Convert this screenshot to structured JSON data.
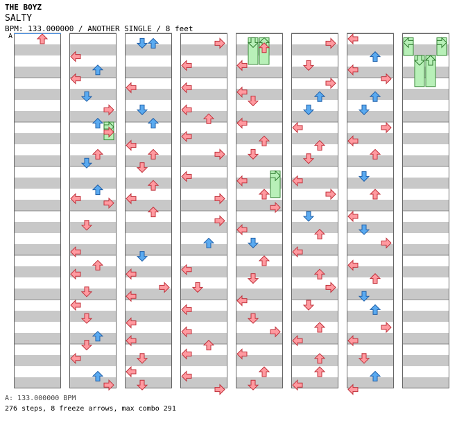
{
  "header": {
    "artist": "THE BOYZ",
    "title": "SALTY",
    "info": "BPM: 133.000000 / ANOTHER SINGLE / 8 feet"
  },
  "bpm_marker": "A",
  "footer": {
    "bpm_line": "A: 133.000000 BPM",
    "stats": "276 steps, 8 freeze arrows, max combo 291"
  },
  "colors": {
    "red_arrow": "#ff9aa0",
    "blue_arrow": "#5aaaf0",
    "freeze": "#b8f0b8",
    "stripe": "#c8c8c8",
    "bpm_line": "#4a90e2"
  },
  "chart_data": {
    "type": "table",
    "columns": 8,
    "measures_per_column": 8,
    "notes": [
      [
        0,
        0.0,
        "U"
      ],
      [
        1,
        0.4,
        "L"
      ],
      [
        1,
        0.7,
        "U"
      ],
      [
        1,
        0.9,
        "L"
      ],
      [
        1,
        1.3,
        "D"
      ],
      [
        1,
        1.6,
        "R"
      ],
      [
        1,
        1.9,
        "U"
      ],
      [
        1,
        2.1,
        "R"
      ],
      [
        1,
        2.6,
        "U"
      ],
      [
        1,
        2.8,
        "D"
      ],
      [
        1,
        3.4,
        "U"
      ],
      [
        1,
        3.6,
        "L"
      ],
      [
        1,
        3.7,
        "R"
      ],
      [
        1,
        4.2,
        "D"
      ],
      [
        1,
        4.8,
        "L"
      ],
      [
        1,
        5.1,
        "U"
      ],
      [
        1,
        5.3,
        "L"
      ],
      [
        1,
        5.7,
        "D"
      ],
      [
        1,
        6.0,
        "L"
      ],
      [
        1,
        6.3,
        "D"
      ],
      [
        1,
        6.7,
        "U"
      ],
      [
        1,
        6.9,
        "D"
      ],
      [
        1,
        7.2,
        "L"
      ],
      [
        1,
        7.6,
        "U"
      ],
      [
        1,
        7.8,
        "R"
      ],
      [
        2,
        0.1,
        "D"
      ],
      [
        2,
        0.1,
        "U"
      ],
      [
        2,
        1.1,
        "L"
      ],
      [
        2,
        1.6,
        "D"
      ],
      [
        2,
        1.9,
        "U"
      ],
      [
        2,
        2.4,
        "L"
      ],
      [
        2,
        2.6,
        "U"
      ],
      [
        2,
        2.9,
        "D"
      ],
      [
        2,
        3.3,
        "U"
      ],
      [
        2,
        3.6,
        "L"
      ],
      [
        2,
        3.9,
        "U"
      ],
      [
        2,
        4.9,
        "D"
      ],
      [
        2,
        5.3,
        "L"
      ],
      [
        2,
        5.6,
        "R"
      ],
      [
        2,
        5.8,
        "L"
      ],
      [
        2,
        6.4,
        "L"
      ],
      [
        2,
        6.8,
        "L"
      ],
      [
        2,
        7.2,
        "D"
      ],
      [
        2,
        7.5,
        "L"
      ],
      [
        2,
        7.8,
        "D"
      ],
      [
        3,
        0.1,
        "R"
      ],
      [
        3,
        0.6,
        "L"
      ],
      [
        3,
        1.1,
        "L"
      ],
      [
        3,
        1.6,
        "L"
      ],
      [
        3,
        1.8,
        "U"
      ],
      [
        3,
        2.2,
        "L"
      ],
      [
        3,
        2.6,
        "R"
      ],
      [
        3,
        3.1,
        "L"
      ],
      [
        3,
        3.6,
        "R"
      ],
      [
        3,
        4.1,
        "R"
      ],
      [
        3,
        4.6,
        "U"
      ],
      [
        3,
        5.2,
        "L"
      ],
      [
        3,
        5.6,
        "D"
      ],
      [
        3,
        6.1,
        "L"
      ],
      [
        3,
        6.6,
        "L"
      ],
      [
        3,
        6.9,
        "U"
      ],
      [
        3,
        7.1,
        "L"
      ],
      [
        3,
        7.6,
        "L"
      ],
      [
        3,
        7.9,
        "R"
      ],
      [
        4,
        0.2,
        "U"
      ],
      [
        4,
        0.6,
        "L"
      ],
      [
        4,
        1.2,
        "L"
      ],
      [
        4,
        1.4,
        "D"
      ],
      [
        4,
        1.9,
        "L"
      ],
      [
        4,
        2.3,
        "U"
      ],
      [
        4,
        2.6,
        "D"
      ],
      [
        4,
        3.2,
        "L"
      ],
      [
        4,
        3.5,
        "U"
      ],
      [
        4,
        3.8,
        "R"
      ],
      [
        4,
        4.3,
        "L"
      ],
      [
        4,
        4.6,
        "D"
      ],
      [
        4,
        5.0,
        "U"
      ],
      [
        4,
        5.4,
        "D"
      ],
      [
        4,
        5.9,
        "L"
      ],
      [
        4,
        6.3,
        "D"
      ],
      [
        4,
        6.6,
        "R"
      ],
      [
        4,
        7.1,
        "L"
      ],
      [
        4,
        7.5,
        "U"
      ],
      [
        4,
        7.8,
        "D"
      ],
      [
        5,
        0.1,
        "R"
      ],
      [
        5,
        0.6,
        "D"
      ],
      [
        5,
        1.0,
        "R"
      ],
      [
        5,
        1.3,
        "U"
      ],
      [
        5,
        1.6,
        "D"
      ],
      [
        5,
        2.0,
        "L"
      ],
      [
        5,
        2.4,
        "U"
      ],
      [
        5,
        2.7,
        "D"
      ],
      [
        5,
        3.2,
        "L"
      ],
      [
        5,
        3.5,
        "R"
      ],
      [
        5,
        4.0,
        "D"
      ],
      [
        5,
        4.4,
        "U"
      ],
      [
        5,
        4.8,
        "L"
      ],
      [
        5,
        5.3,
        "U"
      ],
      [
        5,
        5.6,
        "R"
      ],
      [
        5,
        6.0,
        "D"
      ],
      [
        5,
        6.5,
        "U"
      ],
      [
        5,
        6.8,
        "L"
      ],
      [
        5,
        7.2,
        "U"
      ],
      [
        5,
        7.5,
        "U"
      ],
      [
        5,
        7.8,
        "L"
      ],
      [
        6,
        0.0,
        "L"
      ],
      [
        6,
        0.4,
        "U"
      ],
      [
        6,
        0.7,
        "L"
      ],
      [
        6,
        0.9,
        "R"
      ],
      [
        6,
        1.3,
        "U"
      ],
      [
        6,
        1.6,
        "D"
      ],
      [
        6,
        2.0,
        "R"
      ],
      [
        6,
        2.3,
        "L"
      ],
      [
        6,
        2.6,
        "U"
      ],
      [
        6,
        3.1,
        "D"
      ],
      [
        6,
        3.5,
        "U"
      ],
      [
        6,
        4.0,
        "L"
      ],
      [
        6,
        4.3,
        "D"
      ],
      [
        6,
        4.6,
        "R"
      ],
      [
        6,
        5.1,
        "L"
      ],
      [
        6,
        5.4,
        "U"
      ],
      [
        6,
        5.8,
        "D"
      ],
      [
        6,
        6.1,
        "U"
      ],
      [
        6,
        6.5,
        "R"
      ],
      [
        6,
        6.8,
        "L"
      ],
      [
        6,
        7.2,
        "D"
      ],
      [
        6,
        7.6,
        "U"
      ],
      [
        6,
        7.9,
        "L"
      ]
    ],
    "freezes": [
      [
        1,
        2.0,
        2.4,
        "R"
      ],
      [
        4,
        3.1,
        3.7,
        "R"
      ],
      [
        4,
        0.1,
        0.7,
        "D"
      ],
      [
        4,
        0.1,
        0.7,
        "U"
      ],
      [
        7,
        0.1,
        0.5,
        "L"
      ],
      [
        7,
        0.1,
        0.5,
        "R"
      ],
      [
        7,
        0.5,
        1.2,
        "D"
      ],
      [
        7,
        0.5,
        1.2,
        "U"
      ]
    ]
  }
}
